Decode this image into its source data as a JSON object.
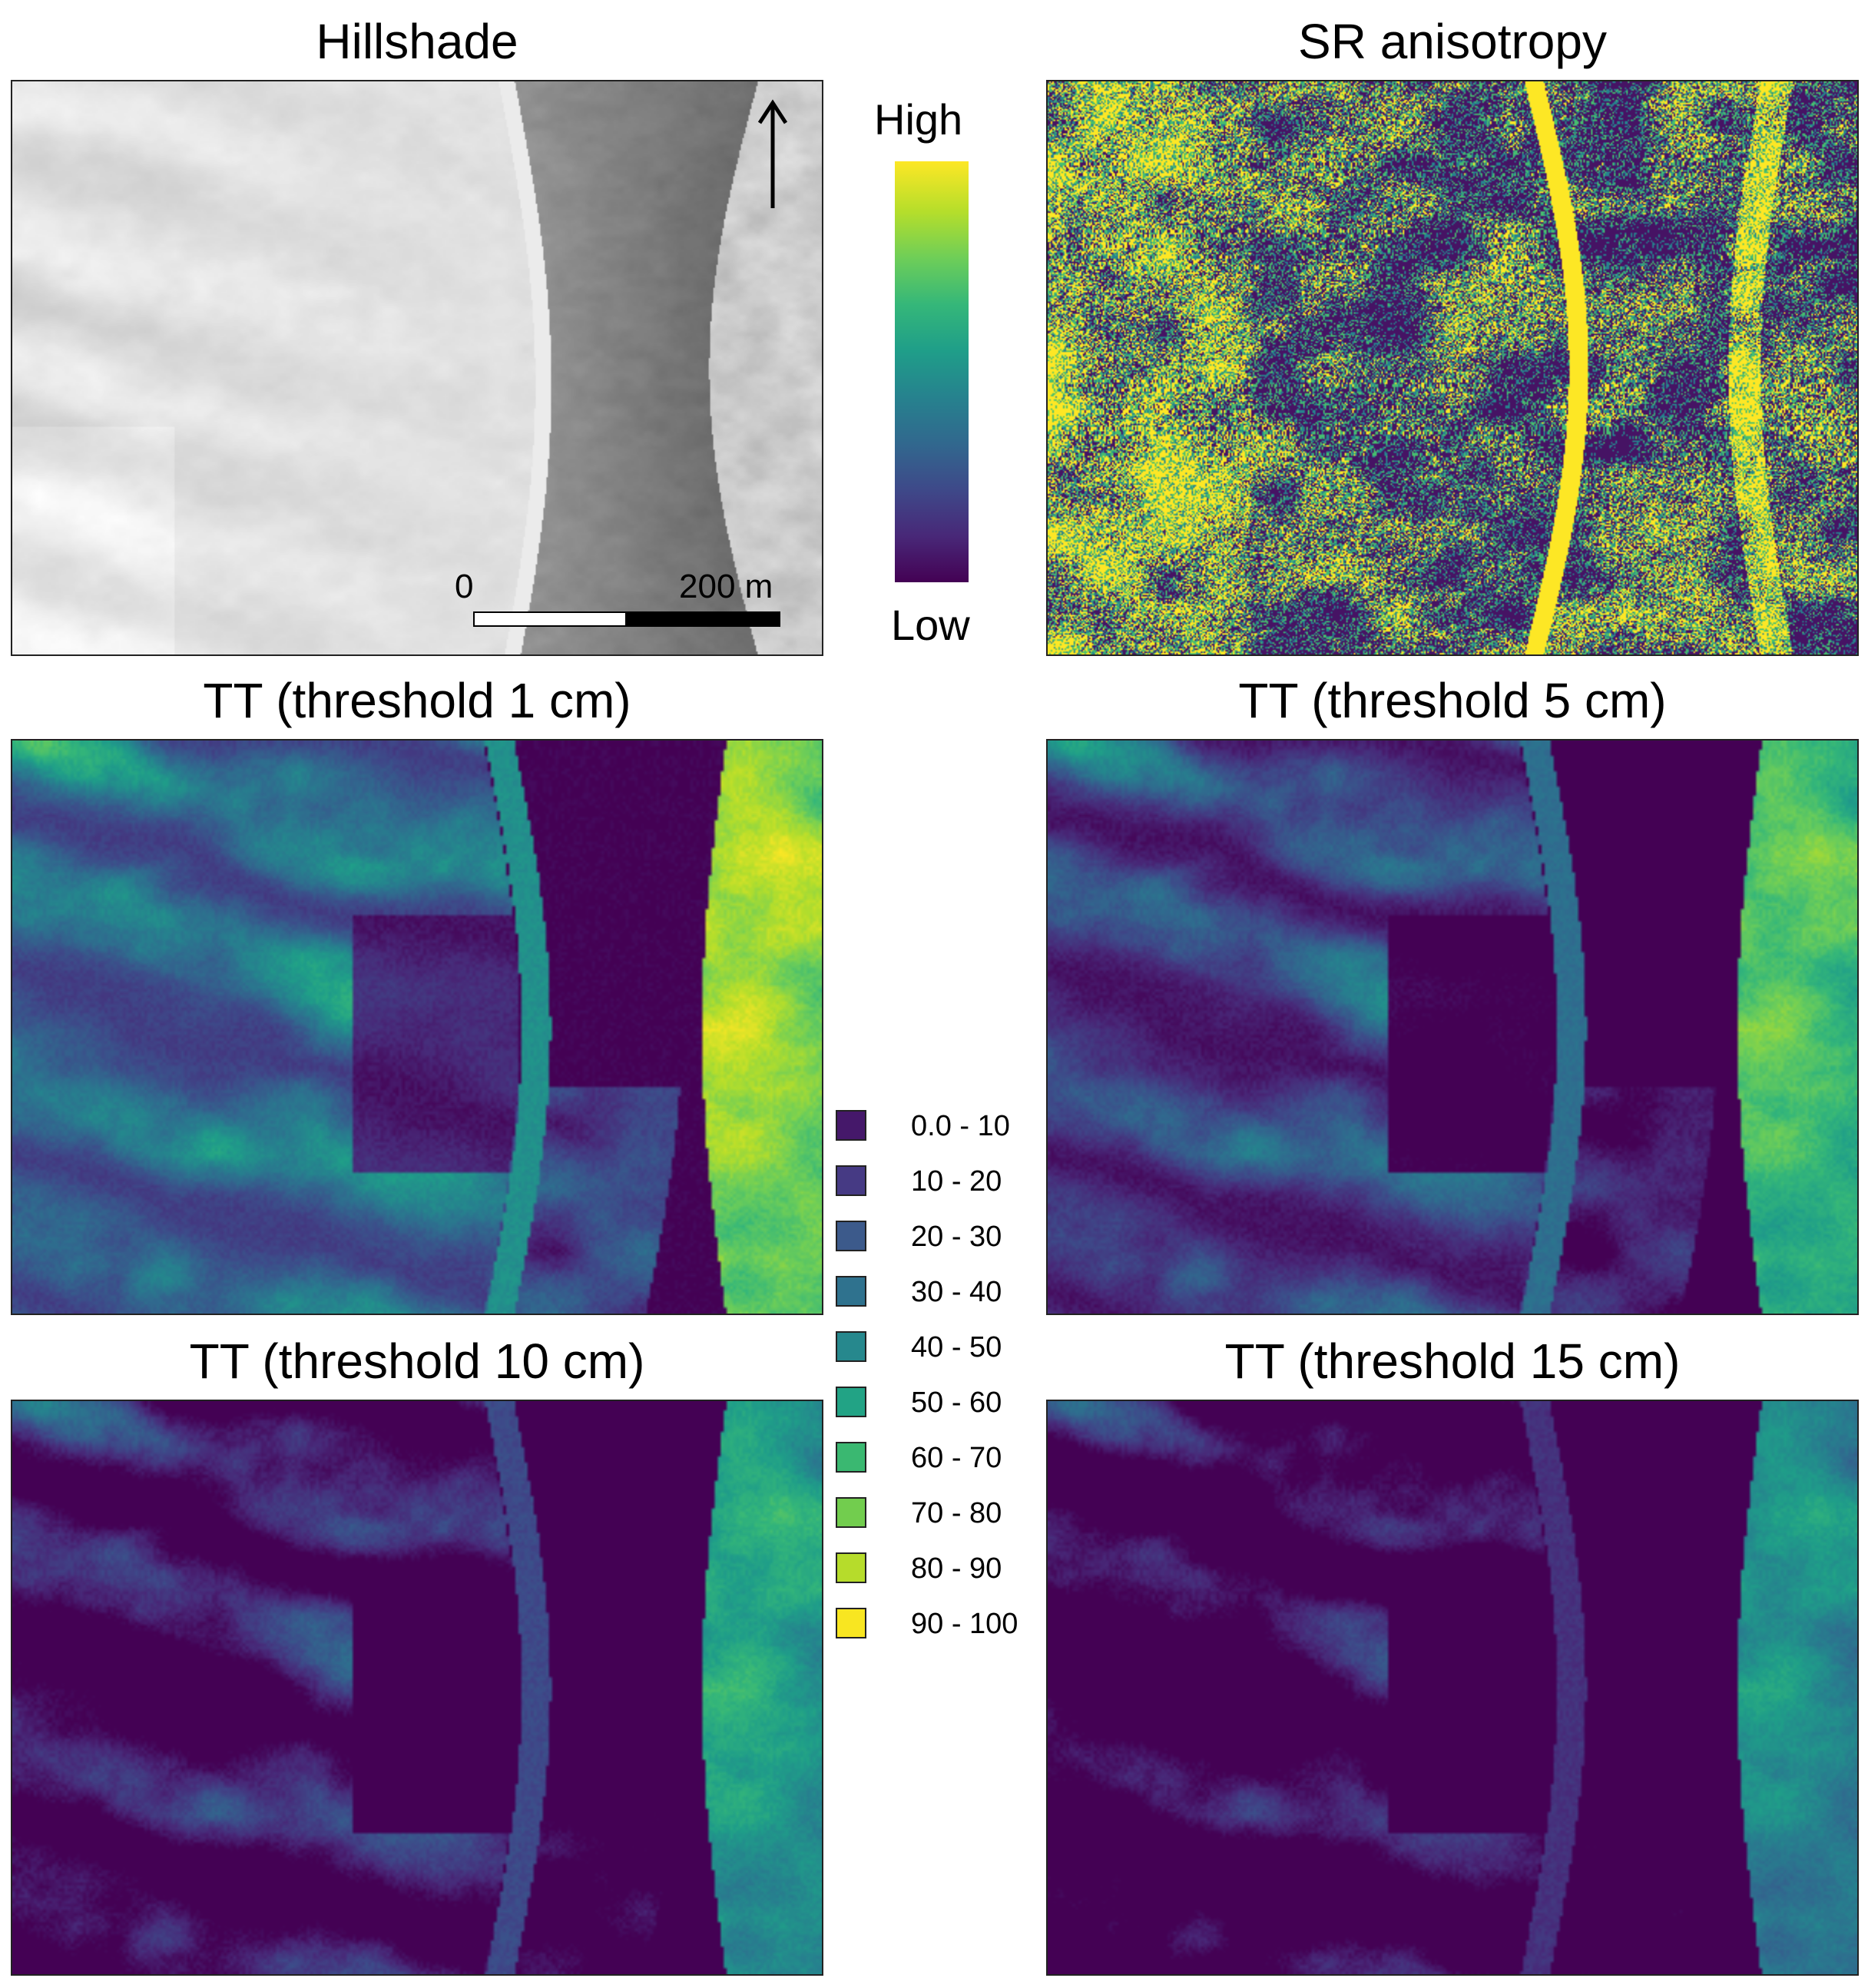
{
  "panels": {
    "hillshade": {
      "title": "Hillshade"
    },
    "sr_anisotropy": {
      "title": "SR anisotropy"
    },
    "tt1": {
      "title": "TT (threshold 1 cm)"
    },
    "tt5": {
      "title": "TT (threshold 5 cm)"
    },
    "tt10": {
      "title": "TT (threshold 10 cm)"
    },
    "tt15": {
      "title": "TT (threshold 15 cm)"
    }
  },
  "colorbar": {
    "high_label": "High",
    "low_label": "Low"
  },
  "scale_bar": {
    "start_label": "0",
    "end_label": "200 m"
  },
  "north_arrow": {
    "icon": "north-arrow-icon"
  },
  "legend": {
    "items": [
      {
        "label": "0.0 - 10",
        "color": "#45186a"
      },
      {
        "label": "10 - 20",
        "color": "#463a84"
      },
      {
        "label": "20 - 30",
        "color": "#3c5a8b"
      },
      {
        "label": "30 - 40",
        "color": "#2f728e"
      },
      {
        "label": "40 - 50",
        "color": "#26888d"
      },
      {
        "label": "50 - 60",
        "color": "#22a385"
      },
      {
        "label": "60 - 70",
        "color": "#3ab871"
      },
      {
        "label": "70 - 80",
        "color": "#72cd4e"
      },
      {
        "label": "80 - 90",
        "color": "#b6dc2b"
      },
      {
        "label": "90 - 100",
        "color": "#f8e621"
      }
    ]
  },
  "colors": {
    "viridis_low": "#440154",
    "viridis_high": "#fde725",
    "panel_border": "#222222"
  }
}
